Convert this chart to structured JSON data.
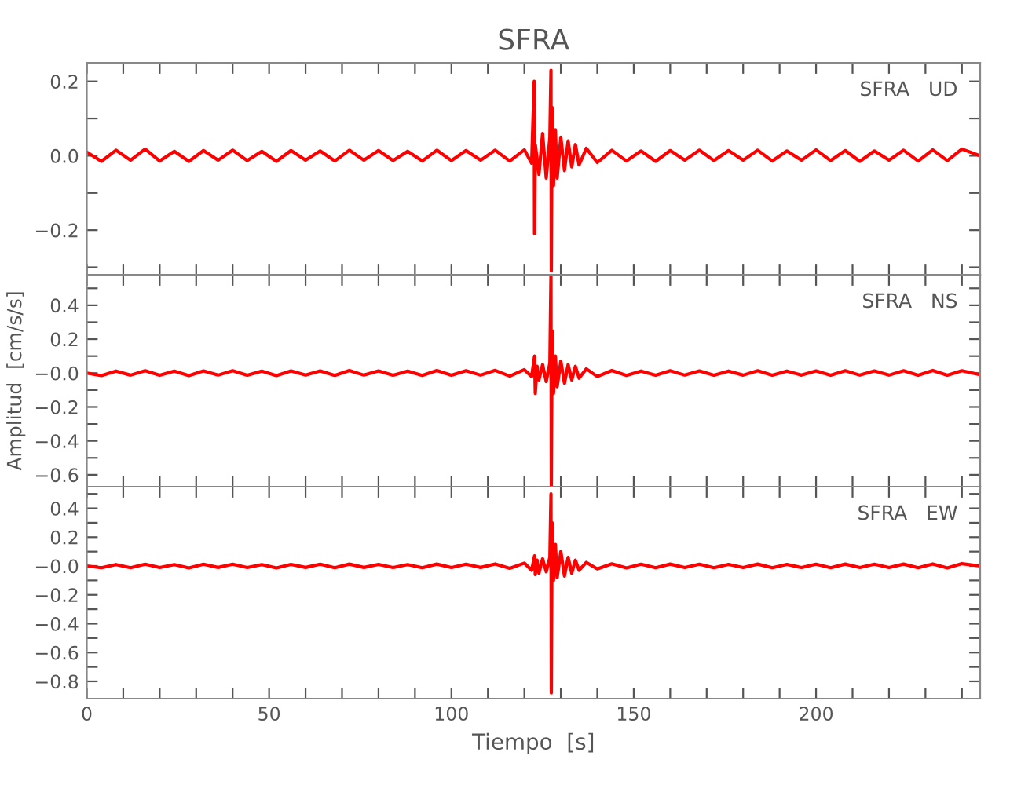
{
  "chart_data": [
    {
      "type": "line",
      "title": "SFRA",
      "annotations": [
        "SFRA   UD"
      ],
      "xlim": [
        0,
        245
      ],
      "ylim": [
        -0.32,
        0.25
      ],
      "tick_labels": "y",
      "grid": false,
      "legend": false,
      "xticks": [
        0,
        {
          "value": 10,
          "label": null
        },
        {
          "value": 20,
          "label": null
        },
        {
          "value": 30,
          "label": null
        },
        {
          "value": 40,
          "label": null
        },
        50,
        {
          "value": 60,
          "label": null
        },
        {
          "value": 70,
          "label": null
        },
        {
          "value": 80,
          "label": null
        },
        {
          "value": 90,
          "label": null
        },
        100,
        {
          "value": 110,
          "label": null
        },
        {
          "value": 120,
          "label": null
        },
        {
          "value": 130,
          "label": null
        },
        {
          "value": 140,
          "label": null
        },
        150,
        {
          "value": 160,
          "label": null
        },
        {
          "value": 170,
          "label": null
        },
        {
          "value": 180,
          "label": null
        },
        {
          "value": 190,
          "label": null
        },
        200,
        {
          "value": 210,
          "label": null
        },
        {
          "value": 220,
          "label": null
        },
        {
          "value": 230,
          "label": null
        },
        {
          "value": 240,
          "label": null
        }
      ],
      "yticks": [
        {
          "value": -0.3,
          "label": null
        },
        {
          "value": -0.2,
          "label": "−0.2"
        },
        {
          "value": -0.1,
          "label": null
        },
        {
          "value": 0.0,
          "label": "0.0"
        },
        {
          "value": 0.1,
          "label": null
        },
        {
          "value": 0.2,
          "label": "0.2"
        }
      ],
      "series": [
        {
          "color": "#ff0000",
          "x": [
            0,
            4,
            8,
            12,
            16,
            20,
            24,
            28,
            32,
            36,
            40,
            44,
            48,
            52,
            56,
            60,
            64,
            68,
            72,
            76,
            80,
            84,
            88,
            92,
            96,
            100,
            104,
            108,
            112,
            116,
            120,
            122,
            122.7,
            122.8,
            123,
            124,
            125,
            126,
            127,
            127.3,
            127.4,
            127.6,
            128,
            128.5,
            129,
            130,
            131,
            132,
            133,
            134,
            135,
            137,
            140,
            144,
            148,
            152,
            156,
            160,
            164,
            168,
            172,
            176,
            180,
            184,
            188,
            192,
            196,
            200,
            204,
            208,
            212,
            216,
            220,
            224,
            228,
            232,
            236,
            240,
            245
          ],
          "values": [
            0.01,
            -0.015,
            0.015,
            -0.012,
            0.018,
            -0.014,
            0.012,
            -0.015,
            0.014,
            -0.012,
            0.015,
            -0.013,
            0.012,
            -0.015,
            0.014,
            -0.012,
            0.013,
            -0.014,
            0.015,
            -0.012,
            0.014,
            -0.013,
            0.012,
            -0.014,
            0.015,
            -0.013,
            0.014,
            -0.012,
            0.015,
            -0.014,
            0.016,
            -0.02,
            0.2,
            -0.21,
            0.03,
            -0.05,
            0.06,
            -0.06,
            0.05,
            0.23,
            -0.31,
            0.13,
            -0.08,
            0.07,
            -0.06,
            0.05,
            -0.04,
            0.04,
            -0.03,
            0.03,
            -0.025,
            0.02,
            -0.018,
            0.015,
            -0.014,
            0.013,
            -0.015,
            0.014,
            -0.012,
            0.015,
            -0.013,
            0.014,
            -0.012,
            0.015,
            -0.014,
            0.013,
            -0.012,
            0.016,
            -0.013,
            0.014,
            -0.015,
            0.013,
            -0.012,
            0.015,
            -0.014,
            0.016,
            -0.013,
            0.018,
            0.0
          ]
        }
      ]
    },
    {
      "type": "line",
      "ylabel": "Amplitud  [cm/s/s]",
      "annotations": [
        "SFRA   NS"
      ],
      "xlim": [
        0,
        245
      ],
      "ylim": [
        -0.67,
        0.58
      ],
      "tick_labels": "y",
      "grid": false,
      "legend": false,
      "xticks": [
        0,
        {
          "value": 10,
          "label": null
        },
        {
          "value": 20,
          "label": null
        },
        {
          "value": 30,
          "label": null
        },
        {
          "value": 40,
          "label": null
        },
        50,
        {
          "value": 60,
          "label": null
        },
        {
          "value": 70,
          "label": null
        },
        {
          "value": 80,
          "label": null
        },
        {
          "value": 90,
          "label": null
        },
        100,
        {
          "value": 110,
          "label": null
        },
        {
          "value": 120,
          "label": null
        },
        {
          "value": 130,
          "label": null
        },
        {
          "value": 140,
          "label": null
        },
        150,
        {
          "value": 160,
          "label": null
        },
        {
          "value": 170,
          "label": null
        },
        {
          "value": 180,
          "label": null
        },
        {
          "value": 190,
          "label": null
        },
        200,
        {
          "value": 210,
          "label": null
        },
        {
          "value": 220,
          "label": null
        },
        {
          "value": 230,
          "label": null
        },
        {
          "value": 240,
          "label": null
        }
      ],
      "yticks": [
        {
          "value": -0.6,
          "label": "−0.6"
        },
        {
          "value": -0.5,
          "label": null
        },
        {
          "value": -0.4,
          "label": "−0.4"
        },
        {
          "value": -0.3,
          "label": null
        },
        {
          "value": -0.2,
          "label": "−0.2"
        },
        {
          "value": -0.1,
          "label": null
        },
        {
          "value": 0.0,
          "label": "−0.0"
        },
        {
          "value": 0.1,
          "label": null
        },
        {
          "value": 0.2,
          "label": "0.2"
        },
        {
          "value": 0.3,
          "label": null
        },
        {
          "value": 0.4,
          "label": "0.4"
        },
        {
          "value": 0.5,
          "label": null
        }
      ],
      "series": [
        {
          "color": "#ff0000",
          "x": [
            0,
            4,
            8,
            12,
            16,
            20,
            24,
            28,
            32,
            36,
            40,
            44,
            48,
            52,
            56,
            60,
            64,
            68,
            72,
            76,
            80,
            84,
            88,
            92,
            96,
            100,
            104,
            108,
            112,
            116,
            120,
            122,
            122.8,
            123,
            123.5,
            124,
            125,
            126,
            127,
            127.3,
            127.4,
            127.6,
            128,
            128.5,
            129,
            130,
            131,
            132,
            133,
            134,
            135,
            137,
            140,
            144,
            148,
            152,
            156,
            160,
            164,
            168,
            172,
            176,
            180,
            184,
            188,
            192,
            196,
            200,
            204,
            208,
            212,
            216,
            220,
            224,
            228,
            232,
            236,
            240,
            245
          ],
          "values": [
            0.0,
            -0.015,
            0.012,
            -0.012,
            0.014,
            -0.013,
            0.012,
            -0.015,
            0.013,
            -0.012,
            0.014,
            -0.013,
            0.012,
            -0.015,
            0.013,
            -0.012,
            0.013,
            -0.014,
            0.015,
            -0.012,
            0.013,
            -0.013,
            0.012,
            -0.014,
            0.015,
            -0.013,
            0.014,
            -0.012,
            0.016,
            -0.018,
            0.02,
            -0.02,
            0.1,
            -0.12,
            0.04,
            -0.04,
            0.05,
            -0.05,
            0.06,
            0.58,
            -0.67,
            0.25,
            -0.12,
            0.1,
            -0.08,
            0.07,
            -0.06,
            0.05,
            -0.04,
            0.04,
            -0.03,
            0.025,
            -0.02,
            0.015,
            -0.014,
            0.012,
            -0.013,
            0.014,
            -0.012,
            0.013,
            -0.013,
            0.012,
            -0.012,
            0.014,
            -0.013,
            0.012,
            -0.012,
            0.013,
            -0.013,
            0.014,
            -0.012,
            0.013,
            -0.012,
            0.014,
            -0.013,
            0.015,
            -0.013,
            0.014,
            -0.01
          ]
        }
      ]
    },
    {
      "type": "line",
      "xlabel": "Tiempo  [s]",
      "annotations": [
        "SFRA   EW"
      ],
      "xlim": [
        0,
        245
      ],
      "ylim": [
        -0.92,
        0.55
      ],
      "grid": false,
      "legend": false,
      "xticks": [
        0,
        {
          "value": 10,
          "label": null
        },
        {
          "value": 20,
          "label": null
        },
        {
          "value": 30,
          "label": null
        },
        {
          "value": 40,
          "label": null
        },
        50,
        {
          "value": 60,
          "label": null
        },
        {
          "value": 70,
          "label": null
        },
        {
          "value": 80,
          "label": null
        },
        {
          "value": 90,
          "label": null
        },
        100,
        {
          "value": 110,
          "label": null
        },
        {
          "value": 120,
          "label": null
        },
        {
          "value": 130,
          "label": null
        },
        {
          "value": 140,
          "label": null
        },
        150,
        {
          "value": 160,
          "label": null
        },
        {
          "value": 170,
          "label": null
        },
        {
          "value": 180,
          "label": null
        },
        {
          "value": 190,
          "label": null
        },
        200,
        {
          "value": 210,
          "label": null
        },
        {
          "value": 220,
          "label": null
        },
        {
          "value": 230,
          "label": null
        },
        {
          "value": 240,
          "label": null
        }
      ],
      "yticks": [
        {
          "value": -0.8,
          "label": "−0.8"
        },
        {
          "value": -0.7,
          "label": null
        },
        {
          "value": -0.6,
          "label": "−0.6"
        },
        {
          "value": -0.5,
          "label": null
        },
        {
          "value": -0.4,
          "label": "−0.4"
        },
        {
          "value": -0.3,
          "label": null
        },
        {
          "value": -0.2,
          "label": "−0.2"
        },
        {
          "value": -0.1,
          "label": null
        },
        {
          "value": 0.0,
          "label": "−0.0"
        },
        {
          "value": 0.1,
          "label": null
        },
        {
          "value": 0.2,
          "label": "0.2"
        },
        {
          "value": 0.3,
          "label": null
        },
        {
          "value": 0.4,
          "label": "0.4"
        },
        {
          "value": 0.5,
          "label": null
        }
      ],
      "series": [
        {
          "color": "#ff0000",
          "x": [
            0,
            4,
            8,
            12,
            16,
            20,
            24,
            28,
            32,
            36,
            40,
            44,
            48,
            52,
            56,
            60,
            64,
            68,
            72,
            76,
            80,
            84,
            88,
            92,
            96,
            100,
            104,
            108,
            112,
            116,
            120,
            122,
            122.8,
            123,
            123.5,
            124,
            125,
            126,
            127,
            127.3,
            127.4,
            127.6,
            128,
            128.5,
            129,
            130,
            131,
            132,
            133,
            134,
            135,
            137,
            140,
            144,
            148,
            152,
            156,
            160,
            164,
            168,
            172,
            176,
            180,
            184,
            188,
            192,
            196,
            200,
            204,
            208,
            212,
            216,
            220,
            224,
            228,
            232,
            236,
            240,
            245
          ],
          "values": [
            0.0,
            -0.012,
            0.01,
            -0.012,
            0.012,
            -0.011,
            0.01,
            -0.013,
            0.012,
            -0.01,
            0.012,
            -0.011,
            0.01,
            -0.013,
            0.011,
            -0.01,
            0.012,
            -0.012,
            0.013,
            -0.01,
            0.011,
            -0.011,
            0.01,
            -0.012,
            0.013,
            -0.011,
            0.012,
            -0.01,
            0.014,
            -0.016,
            0.02,
            -0.03,
            0.07,
            -0.06,
            0.04,
            -0.05,
            0.05,
            -0.04,
            0.06,
            0.5,
            -0.88,
            0.3,
            -0.1,
            0.15,
            -0.08,
            0.1,
            -0.07,
            0.06,
            -0.05,
            0.04,
            -0.03,
            0.025,
            -0.02,
            0.015,
            -0.013,
            0.012,
            -0.012,
            0.013,
            -0.011,
            0.012,
            -0.012,
            0.011,
            -0.011,
            0.013,
            -0.012,
            0.011,
            -0.011,
            0.012,
            -0.012,
            0.013,
            -0.011,
            0.012,
            -0.011,
            0.013,
            -0.012,
            0.014,
            -0.013,
            0.016,
            0.0
          ]
        }
      ]
    }
  ]
}
